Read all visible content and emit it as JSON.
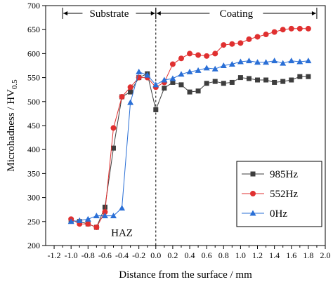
{
  "chart_data": {
    "type": "line",
    "title": "",
    "xlabel": "Distance from the surface / mm",
    "ylabel_main": "Microhadness / HV",
    "ylabel_sub": "0.5",
    "xlim": [
      -1.3,
      2.0
    ],
    "ylim": [
      200,
      700
    ],
    "xticks": [
      -1.2,
      -1.0,
      -0.8,
      -0.6,
      -0.4,
      -0.2,
      0.0,
      0.2,
      0.4,
      0.6,
      0.8,
      1.0,
      1.2,
      1.4,
      1.6,
      1.8,
      2.0
    ],
    "xtick_labels": [
      "-1.2",
      "-1.0",
      "-0.8",
      "-0.6",
      "-0.4",
      "-0.2",
      "0.0",
      "0.2",
      "0.4",
      "0.6",
      "0.8",
      "1.0",
      "1.2",
      "1.4",
      "1.6",
      "1.8",
      "2.0"
    ],
    "yticks": [
      200,
      250,
      300,
      350,
      400,
      450,
      500,
      550,
      600,
      650,
      700
    ],
    "ytick_labels": [
      "200",
      "250",
      "300",
      "350",
      "400",
      "450",
      "500",
      "550",
      "600",
      "650",
      "700"
    ],
    "legend_position": "bottom-right",
    "grid": false,
    "annotations": [
      {
        "text": "Substrate",
        "x_from": -1.1,
        "x_to": 0.0,
        "y": 684
      },
      {
        "text": "Coating",
        "x_from": 0.0,
        "x_to": 1.9,
        "y": 684
      },
      {
        "text": "HAZ",
        "x_from": -0.7,
        "x_to": -0.1,
        "y": 227
      }
    ],
    "series": [
      {
        "name": "985Hz",
        "color": "#3d3d3d",
        "marker": "square",
        "x": [
          -1.0,
          -0.9,
          -0.8,
          -0.7,
          -0.6,
          -0.5,
          -0.4,
          -0.3,
          -0.2,
          -0.1,
          0.0,
          0.1,
          0.2,
          0.3,
          0.4,
          0.5,
          0.6,
          0.7,
          0.8,
          0.9,
          1.0,
          1.1,
          1.2,
          1.3,
          1.4,
          1.5,
          1.6,
          1.7,
          1.8
        ],
        "y": [
          252,
          250,
          245,
          238,
          280,
          403,
          510,
          520,
          550,
          558,
          483,
          528,
          540,
          535,
          520,
          522,
          538,
          542,
          538,
          540,
          550,
          548,
          545,
          545,
          540,
          542,
          545,
          552,
          552
        ]
      },
      {
        "name": "552Hz",
        "color": "#e03030",
        "marker": "circle",
        "x": [
          -1.0,
          -0.9,
          -0.8,
          -0.7,
          -0.6,
          -0.5,
          -0.4,
          -0.3,
          -0.2,
          -0.1,
          0.0,
          0.1,
          0.2,
          0.3,
          0.4,
          0.5,
          0.6,
          0.7,
          0.8,
          0.9,
          1.0,
          1.1,
          1.2,
          1.3,
          1.4,
          1.5,
          1.6,
          1.7,
          1.8
        ],
        "y": [
          255,
          245,
          245,
          238,
          270,
          445,
          510,
          530,
          550,
          550,
          530,
          540,
          578,
          590,
          600,
          597,
          595,
          600,
          618,
          620,
          622,
          630,
          635,
          640,
          645,
          650,
          652,
          652,
          652
        ]
      },
      {
        "name": "0Hz",
        "color": "#2a6fd6",
        "marker": "triangle",
        "x": [
          -1.0,
          -0.9,
          -0.8,
          -0.7,
          -0.6,
          -0.5,
          -0.4,
          -0.3,
          -0.2,
          -0.1,
          0.0,
          0.1,
          0.2,
          0.3,
          0.4,
          0.5,
          0.6,
          0.7,
          0.8,
          0.9,
          1.0,
          1.1,
          1.2,
          1.3,
          1.4,
          1.5,
          1.6,
          1.7,
          1.8
        ],
        "y": [
          250,
          252,
          255,
          262,
          262,
          262,
          278,
          498,
          562,
          555,
          535,
          545,
          548,
          557,
          562,
          565,
          570,
          568,
          575,
          578,
          583,
          585,
          582,
          582,
          585,
          580,
          585,
          583,
          585
        ]
      }
    ]
  }
}
